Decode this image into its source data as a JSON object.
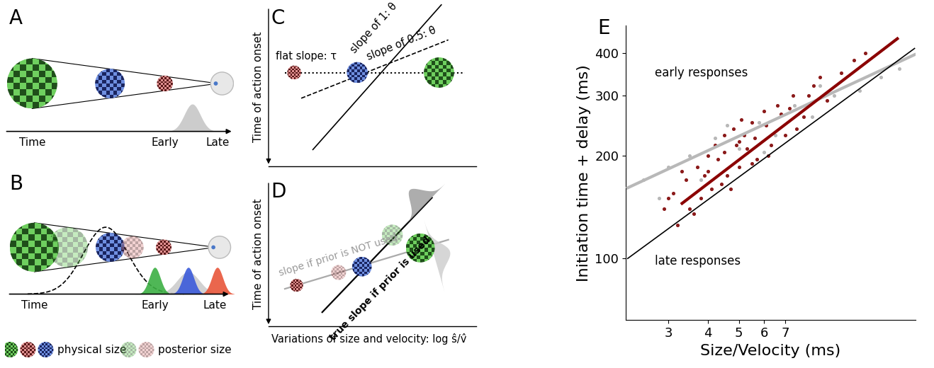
{
  "diagrams": [
    {
      "label": "A",
      "axis_label": "Time",
      "time_marks": [
        "Early",
        "Late"
      ]
    },
    {
      "label": "B",
      "axis_label": "Time",
      "time_marks": [
        "Early",
        "Late"
      ],
      "key_labels": [
        "physical size",
        "posterior size"
      ]
    },
    {
      "label": "C",
      "y_label": "Time of action onset",
      "line_labels": [
        "flat slope: τ",
        "slope of 1: θ",
        "slope of 0.5: θ̇"
      ]
    },
    {
      "label": "D",
      "y_label": "Time of action onset",
      "x_label": "Variations of size and velocity: log ŝ/v̂",
      "line_labels": [
        "slope if prior is NOT used",
        "true slope if prior is used"
      ]
    }
  ],
  "chart_data": {
    "panel": "E",
    "type": "scatter",
    "log": true,
    "x_label": "Size/Velocity (ms)",
    "y_label": "Initiation time + delay (ms)",
    "annotations": [
      "early responses",
      "late responses"
    ],
    "xlim": [
      2.2,
      18
    ],
    "ylim": [
      66,
      480
    ],
    "xticks": [
      3,
      4,
      5,
      6,
      7
    ],
    "yticks": [
      100,
      200,
      300,
      400
    ],
    "series": [
      {
        "type": "scatter",
        "color": "#b8b8b8",
        "x": [
          2.5,
          3.0,
          3.5,
          4.2,
          5.0,
          5.8,
          6.5,
          7.5,
          8.5,
          10,
          12,
          14,
          3.8,
          4.6,
          6.0,
          9.0,
          16,
          2.8
        ],
        "y": [
          170,
          185,
          200,
          225,
          210,
          250,
          230,
          280,
          260,
          300,
          310,
          340,
          170,
          245,
          205,
          320,
          360,
          150
        ]
      },
      {
        "type": "scatter",
        "color": "#8b1a1a",
        "x": [
          3.0,
          3.2,
          3.4,
          3.5,
          3.7,
          3.8,
          4.0,
          4.1,
          4.2,
          4.4,
          4.5,
          4.6,
          4.8,
          5.0,
          5.1,
          5.3,
          5.5,
          5.7,
          6.0,
          6.3,
          6.6,
          7.0,
          7.4,
          8.0,
          8.6,
          9.5,
          3.3,
          3.6,
          3.9,
          4.3,
          4.7,
          4.9,
          5.2,
          5.6,
          6.1,
          6.8,
          7.6,
          8.3,
          9.0,
          10.5,
          2.9,
          3.1,
          4.0,
          4.5,
          5.0,
          5.5,
          6.2,
          7.2,
          11.5,
          12.5
        ],
        "y": [
          150,
          125,
          170,
          140,
          185,
          150,
          200,
          160,
          215,
          165,
          230,
          175,
          240,
          185,
          255,
          210,
          250,
          195,
          270,
          215,
          280,
          230,
          300,
          260,
          320,
          290,
          180,
          135,
          175,
          195,
          160,
          215,
          230,
          225,
          245,
          265,
          240,
          300,
          340,
          350,
          140,
          155,
          180,
          205,
          220,
          190,
          200,
          275,
          380,
          400
        ]
      },
      {
        "type": "line",
        "color": "#b8b8b8",
        "x": [
          2.23,
          17.9
        ],
        "y": [
          161,
          395
        ]
      },
      {
        "type": "line",
        "color": "#8b0000",
        "x": [
          3.31,
          15.8
        ],
        "y": [
          145,
          440
        ]
      },
      {
        "type": "line",
        "color": "#000000",
        "x": [
          2.23,
          17.9
        ],
        "y": [
          100,
          412
        ]
      }
    ]
  }
}
